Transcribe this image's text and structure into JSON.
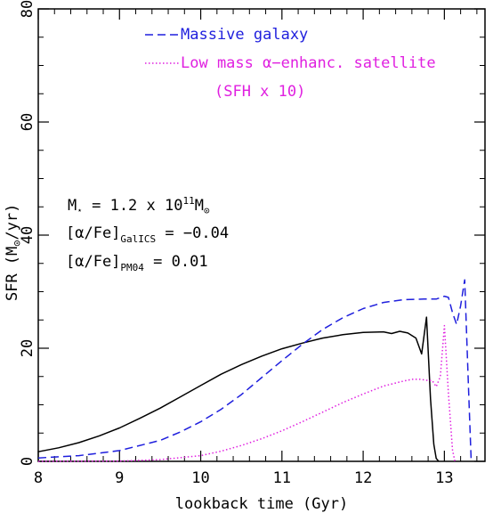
{
  "chart_data": {
    "type": "line",
    "title": "",
    "xlabel": "lookback time (Gyr)",
    "ylabel_main": "SFR",
    "ylabel_unit_open": "(M",
    "ylabel_unit_close": "/yr)",
    "xlim": [
      8,
      13.5
    ],
    "ylim": [
      0,
      80
    ],
    "x_ticks": [
      8,
      9,
      10,
      11,
      12,
      13
    ],
    "y_ticks": [
      0,
      20,
      40,
      60,
      80
    ],
    "grid": false,
    "legend_position": "top-center",
    "legend": [
      {
        "series": "massive",
        "label": "Massive galaxy"
      },
      {
        "series": "satellite",
        "label": "Low mass α−enhanc. satellite",
        "sublabel": "(SFH x 10)"
      }
    ],
    "annotations": {
      "mass_left": "M",
      "mass_sub": "⋆",
      "mass_eq": " = 1.2 x 10",
      "mass_exp": "11",
      "mass_unit": "M",
      "alpha1_left": "[α/Fe]",
      "alpha1_sub": "GalICS",
      "alpha1_right": " = −0.04",
      "alpha2_left": "[α/Fe]",
      "alpha2_sub": "PM04",
      "alpha2_right": " = 0.01"
    },
    "series": [
      {
        "id": "total",
        "color": "#000000",
        "style": "solid",
        "x": [
          8.0,
          8.25,
          8.5,
          8.75,
          9.0,
          9.25,
          9.5,
          9.75,
          10.0,
          10.25,
          10.5,
          10.75,
          11.0,
          11.25,
          11.5,
          11.75,
          12.0,
          12.25,
          12.35,
          12.45,
          12.55,
          12.65,
          12.72,
          12.78,
          12.83,
          12.87,
          12.9,
          12.93
        ],
        "y": [
          1.7,
          2.4,
          3.3,
          4.5,
          5.9,
          7.6,
          9.4,
          11.4,
          13.4,
          15.4,
          17.1,
          18.6,
          19.9,
          20.9,
          21.8,
          22.4,
          22.8,
          22.9,
          22.6,
          23.0,
          22.7,
          21.8,
          19.0,
          25.5,
          11.0,
          3.0,
          0.5,
          0.0
        ]
      },
      {
        "id": "massive",
        "color": "#1f1fdd",
        "style": "dashed",
        "x": [
          8.0,
          8.5,
          9.0,
          9.5,
          9.75,
          10.0,
          10.25,
          10.5,
          10.75,
          11.0,
          11.25,
          11.5,
          11.75,
          12.0,
          12.25,
          12.5,
          12.75,
          12.9,
          13.0,
          13.05,
          13.1,
          13.15,
          13.2,
          13.25,
          13.3,
          13.33
        ],
        "y": [
          0.6,
          1.0,
          1.9,
          3.7,
          5.2,
          7.0,
          9.2,
          11.8,
          14.8,
          17.8,
          20.7,
          23.3,
          25.4,
          27.0,
          28.1,
          28.6,
          28.7,
          28.7,
          29.2,
          29.0,
          26.3,
          24.2,
          27.5,
          32.1,
          12.0,
          0.0
        ]
      },
      {
        "id": "satellite",
        "color": "#e020e0",
        "style": "dotted",
        "x": [
          8.0,
          9.0,
          9.5,
          10.0,
          10.25,
          10.5,
          10.75,
          11.0,
          11.25,
          11.5,
          11.75,
          12.0,
          12.25,
          12.5,
          12.6,
          12.7,
          12.8,
          12.85,
          12.9,
          12.95,
          13.0,
          13.05,
          13.1,
          13.13
        ],
        "y": [
          0.0,
          0.05,
          0.3,
          1.0,
          1.8,
          2.8,
          4.0,
          5.4,
          7.0,
          8.7,
          10.4,
          11.9,
          13.3,
          14.2,
          14.5,
          14.5,
          14.3,
          14.3,
          13.2,
          15.0,
          24.0,
          12.0,
          2.0,
          0.0
        ]
      }
    ]
  }
}
